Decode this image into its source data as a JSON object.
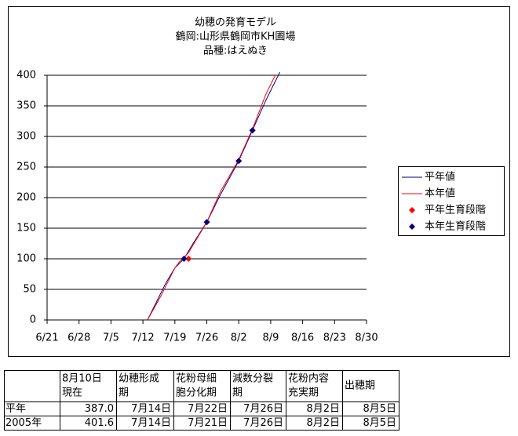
{
  "chart_data": {
    "type": "line",
    "title": [
      "幼穂の発育モデル",
      "鶴岡:山形県鶴岡市KH圃場",
      "品種:はえぬき"
    ],
    "xlim": [
      "6/21",
      "8/30"
    ],
    "xticks": [
      "6/21",
      "6/28",
      "7/5",
      "7/12",
      "7/19",
      "7/26",
      "8/2",
      "8/9",
      "8/16",
      "8/23",
      "8/30"
    ],
    "ylim": [
      0,
      400
    ],
    "yticks": [
      0,
      50,
      100,
      150,
      200,
      250,
      300,
      350,
      400
    ],
    "grid": true,
    "series": [
      {
        "name": "平年値",
        "color": "#000080",
        "kind": "line",
        "x": [
          "7/13",
          "7/15",
          "7/17",
          "7/19",
          "7/21",
          "7/23",
          "7/26",
          "7/29",
          "8/2",
          "8/5",
          "8/8",
          "8/11"
        ],
        "values": [
          0,
          30,
          60,
          85,
          100,
          125,
          160,
          205,
          260,
          310,
          360,
          405
        ]
      },
      {
        "name": "本年値",
        "color": "#ff0000",
        "kind": "line",
        "x": [
          "7/13",
          "7/16",
          "7/19",
          "7/20",
          "7/22",
          "7/26",
          "7/29",
          "8/2",
          "8/5",
          "8/8",
          "8/10"
        ],
        "values": [
          0,
          40,
          85,
          95,
          110,
          160,
          210,
          262,
          312,
          370,
          400
        ]
      },
      {
        "name": "平年生育段階",
        "color": "#ff0000",
        "kind": "marker",
        "x": [
          "7/22",
          "7/26",
          "8/2",
          "8/5"
        ],
        "values": [
          100,
          160,
          260,
          310
        ]
      },
      {
        "name": "本年生育段階",
        "color": "#000080",
        "kind": "marker",
        "x": [
          "7/21",
          "7/26",
          "8/2",
          "8/5"
        ],
        "values": [
          100,
          160,
          260,
          310
        ]
      }
    ]
  },
  "table": {
    "header": [
      [
        "8月10日",
        "現在"
      ],
      [
        "幼穂形成",
        "期"
      ],
      [
        "花粉母細",
        "胞分化期"
      ],
      [
        "減数分裂",
        "期"
      ],
      [
        "花粉内容",
        "充実期"
      ],
      [
        "出穂期"
      ]
    ],
    "rows": [
      [
        "平年",
        "387.0",
        "7月14日",
        "7月22日",
        "7月26日",
        "8月2日",
        "8月5日"
      ],
      [
        "2005年",
        "401.6",
        "7月14日",
        "7月21日",
        "7月26日",
        "8月2日",
        "8月5日"
      ]
    ]
  }
}
